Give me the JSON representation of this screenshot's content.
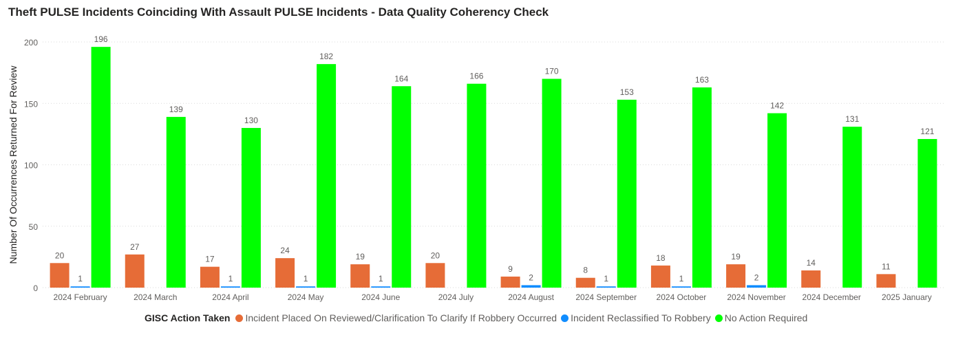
{
  "title": "Theft PULSE Incidents Coinciding With Assault PULSE Incidents - Data Quality Coherency Check",
  "chart_data": {
    "type": "bar",
    "title": "Theft PULSE Incidents Coinciding With Assault PULSE Incidents - Data Quality Coherency Check",
    "xlabel": "",
    "ylabel": "Number Of Occurrences Returned For Review",
    "ylim": [
      0,
      200
    ],
    "yticks": [
      0,
      50,
      100,
      150,
      200
    ],
    "grid": true,
    "legend_title": "GISC Action Taken",
    "legend_position": "bottom",
    "categories": [
      "2024 February",
      "2024 March",
      "2024 April",
      "2024 May",
      "2024 June",
      "2024 July",
      "2024 August",
      "2024 September",
      "2024 October",
      "2024 November",
      "2024 December",
      "2025 January"
    ],
    "series": [
      {
        "name": "Incident Placed On Reviewed/Clarification To Clarify If Robbery Occurred",
        "color": "#e66c37",
        "values": [
          20,
          27,
          17,
          24,
          19,
          20,
          9,
          8,
          18,
          19,
          14,
          11
        ]
      },
      {
        "name": "Incident Reclassified To Robbery",
        "color": "#118dff",
        "values": [
          1,
          null,
          1,
          1,
          1,
          null,
          2,
          1,
          1,
          2,
          null,
          null
        ]
      },
      {
        "name": "No Action Required",
        "color": "#00ff00",
        "values": [
          196,
          139,
          130,
          182,
          164,
          166,
          170,
          153,
          163,
          142,
          131,
          121
        ]
      }
    ]
  }
}
